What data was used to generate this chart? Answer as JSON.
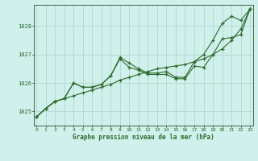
{
  "title": "Graphe pression niveau de la mer (hPa)",
  "bg_color": "#cff0eb",
  "grid_color": "#b0d8d0",
  "line_color": "#2d6a2d",
  "marker_color": "#2d6a2d",
  "ylim": [
    1024.5,
    1028.75
  ],
  "xlim": [
    -0.3,
    23.3
  ],
  "yticks": [
    1025,
    1026,
    1027,
    1028
  ],
  "xticks": [
    0,
    1,
    2,
    3,
    4,
    5,
    6,
    7,
    8,
    9,
    10,
    11,
    12,
    13,
    14,
    15,
    16,
    17,
    18,
    19,
    20,
    21,
    22,
    23
  ],
  "series": [
    [
      1024.8,
      1025.1,
      1025.35,
      1025.45,
      1025.55,
      1025.65,
      1025.75,
      1025.85,
      1025.95,
      1026.1,
      1026.2,
      1026.3,
      1026.4,
      1026.5,
      1026.55,
      1026.6,
      1026.65,
      1026.75,
      1026.85,
      1027.0,
      1027.2,
      1027.5,
      1027.9,
      1028.6
    ],
    [
      1024.8,
      1025.1,
      1025.35,
      1025.45,
      1026.0,
      1025.85,
      1025.85,
      1025.95,
      1026.25,
      1026.85,
      1026.55,
      1026.45,
      1026.3,
      1026.3,
      1026.3,
      1026.15,
      1026.15,
      1026.6,
      1026.55,
      1027.0,
      1027.55,
      1027.6,
      1027.7,
      1028.6
    ],
    [
      1024.8,
      1025.1,
      1025.35,
      1025.45,
      1026.0,
      1025.85,
      1025.85,
      1025.95,
      1026.25,
      1026.9,
      1026.7,
      1026.5,
      1026.35,
      1026.35,
      1026.4,
      1026.2,
      1026.2,
      1026.75,
      1027.0,
      1027.5,
      1028.1,
      1028.35,
      1028.2,
      1028.6
    ]
  ]
}
